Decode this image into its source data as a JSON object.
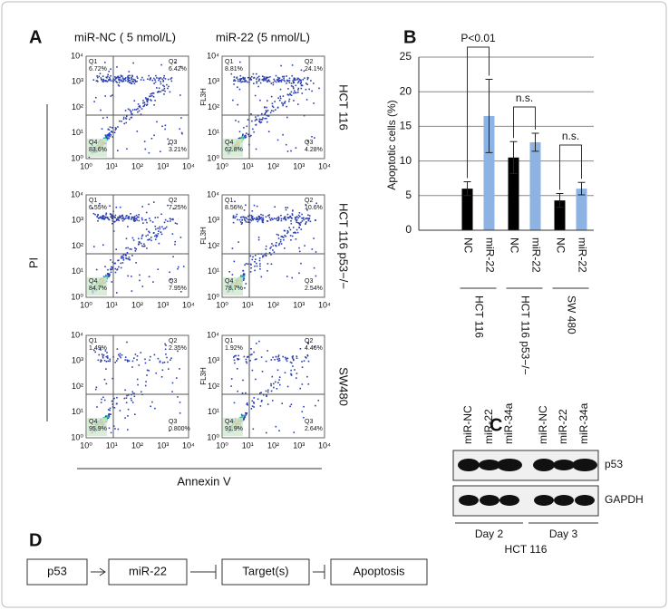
{
  "panel_labels": [
    "A",
    "B",
    "C",
    "D"
  ],
  "panel_a": {
    "columns": [
      "miR-NC ( 5 nmol/L)",
      "miR-22 (5 nmol/L)"
    ],
    "rows": [
      "HCT 116",
      "HCT 116 p53−/−",
      "SW480"
    ],
    "y_label": "PI",
    "x_label": "Annexin V",
    "plot_y_label": "FL3H",
    "ticks": [
      "10⁰",
      "10¹",
      "10²",
      "10³",
      "10⁴"
    ],
    "quadrants": [
      "Q1",
      "Q2",
      "Q3",
      "Q4"
    ],
    "plots": [
      [
        [
          "6.72%",
          "6.42%",
          "3.21%",
          "83.6%"
        ],
        [
          "8.81%",
          "24.1%",
          "4.28%",
          "62.8%"
        ]
      ],
      [
        [
          "6.55%",
          "7.25%",
          "7.95%",
          "84.7%"
        ],
        [
          "8.56%",
          "10.6%",
          "2.54%",
          "78.7%"
        ]
      ],
      [
        [
          "1.49%",
          "2.35%",
          "0.800%",
          "95.9%"
        ],
        [
          "1.92%",
          "4.46%",
          "2.64%",
          "91.9%"
        ]
      ]
    ]
  },
  "chart_data": {
    "type": "bar",
    "y_label": "Apoptotic cells (%)",
    "categories": [
      "HCT 116",
      "HCT 116 p53−/−",
      "SW 480"
    ],
    "series": [
      {
        "name": "NC",
        "color": "#000000",
        "values": [
          6,
          10.5,
          4.3
        ],
        "errors": [
          1,
          2.3,
          1
        ]
      },
      {
        "name": "miR-22",
        "color": "#8db3e2",
        "values": [
          16.5,
          12.7,
          6
        ],
        "errors": [
          5.3,
          1.3,
          0.9
        ]
      }
    ],
    "ylim": [
      0,
      25
    ],
    "yticks": [
      0,
      5,
      10,
      15,
      20,
      25
    ],
    "grid": true,
    "annotations": [
      "P<0.01",
      "n.s.",
      "n.s."
    ]
  },
  "panel_c": {
    "lanes": [
      "miR-NC",
      "miR-22",
      "miR-34a",
      "miR-NC",
      "miR-22",
      "miR-34a"
    ],
    "bands": [
      "p53",
      "GAPDH"
    ],
    "days": [
      "Day 2",
      "Day 3"
    ],
    "cell_line": "HCT 116"
  },
  "panel_d": {
    "nodes": [
      "p53",
      "miR-22",
      "Target(s)",
      "Apoptosis"
    ]
  }
}
